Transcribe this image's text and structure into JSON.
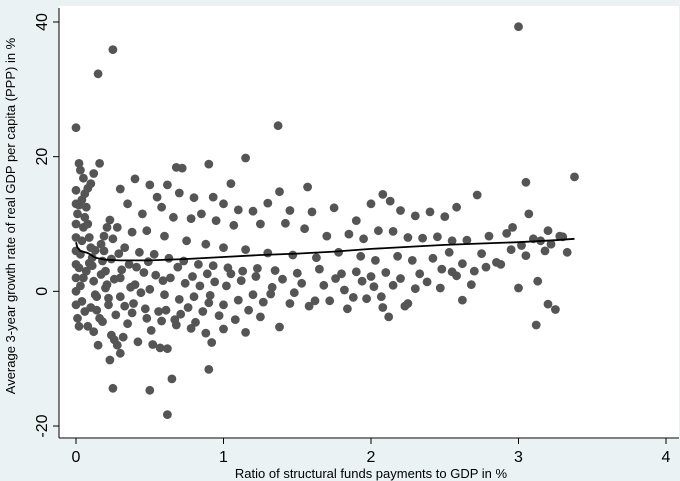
{
  "chart_data": {
    "type": "scatter",
    "xlabel": "Ratio of structural funds payments to GDP in %",
    "ylabel": "Average 3-year growth rate of real GDP per capita (PPP) in %",
    "xlim": [
      0,
      4
    ],
    "ylim": [
      -20,
      40
    ],
    "xticks": [
      "0",
      "1",
      "2",
      "3",
      "4"
    ],
    "yticks": [
      "-20",
      "0",
      "20",
      "40"
    ],
    "grid": false,
    "legend": "none",
    "colors": {
      "background": "#eaf2f3",
      "plot_bg": "#ffffff",
      "marker": "#555555",
      "line": "#000000"
    },
    "series": [
      {
        "kind": "points",
        "points": [
          [
            0.0,
            24.3
          ],
          [
            0.15,
            32.3
          ],
          [
            0.25,
            35.9
          ],
          [
            3.0,
            39.3
          ],
          [
            1.37,
            24.6
          ],
          [
            1.15,
            19.8
          ],
          [
            0.02,
            19.0
          ],
          [
            0.16,
            19.0
          ],
          [
            0.68,
            18.4
          ],
          [
            0.72,
            18.3
          ],
          [
            3.38,
            17.0
          ],
          [
            0.9,
            18.9
          ],
          [
            3.05,
            16.2
          ],
          [
            1.57,
            15.5
          ],
          [
            1.05,
            16.0
          ],
          [
            1.38,
            14.8
          ],
          [
            0.4,
            16.7
          ],
          [
            0.5,
            15.8
          ],
          [
            0.3,
            15.2
          ],
          [
            0.55,
            14.0
          ],
          [
            0.62,
            15.8
          ],
          [
            0.7,
            14.6
          ],
          [
            0.8,
            13.9
          ],
          [
            0.93,
            14.0
          ],
          [
            1.0,
            13.0
          ],
          [
            1.1,
            12.1
          ],
          [
            1.2,
            11.9
          ],
          [
            1.3,
            13.1
          ],
          [
            1.45,
            12.0
          ],
          [
            1.6,
            11.8
          ],
          [
            1.75,
            12.4
          ],
          [
            1.9,
            10.5
          ],
          [
            2.0,
            13.0
          ],
          [
            2.08,
            14.4
          ],
          [
            2.13,
            13.4
          ],
          [
            2.2,
            12.0
          ],
          [
            2.3,
            11.2
          ],
          [
            2.4,
            11.8
          ],
          [
            2.5,
            11.1
          ],
          [
            2.58,
            12.5
          ],
          [
            2.72,
            14.3
          ],
          [
            2.96,
            9.5
          ],
          [
            3.07,
            11.5
          ],
          [
            3.2,
            9.0
          ],
          [
            0.35,
            13.0
          ],
          [
            0.45,
            11.5
          ],
          [
            0.58,
            12.5
          ],
          [
            0.66,
            11.0
          ],
          [
            0.78,
            10.8
          ],
          [
            0.85,
            11.5
          ],
          [
            0.95,
            10.5
          ],
          [
            1.07,
            9.8
          ],
          [
            1.25,
            10.0
          ],
          [
            1.42,
            10.1
          ],
          [
            1.55,
            9.3
          ],
          [
            1.7,
            8.2
          ],
          [
            1.85,
            8.5
          ],
          [
            1.95,
            7.8
          ],
          [
            2.05,
            9.0
          ],
          [
            2.15,
            8.9
          ],
          [
            2.25,
            8.0
          ],
          [
            2.35,
            7.9
          ],
          [
            2.45,
            8.1
          ],
          [
            2.55,
            7.5
          ],
          [
            2.65,
            7.6
          ],
          [
            2.8,
            8.2
          ],
          [
            2.92,
            8.6
          ],
          [
            3.1,
            7.8
          ],
          [
            3.22,
            7.0
          ],
          [
            3.3,
            8.1
          ],
          [
            0.28,
            9.5
          ],
          [
            0.38,
            8.8
          ],
          [
            0.48,
            9.0
          ],
          [
            0.6,
            8.2
          ],
          [
            0.75,
            7.5
          ],
          [
            0.88,
            7.0
          ],
          [
            1.0,
            6.5
          ],
          [
            1.15,
            6.2
          ],
          [
            1.3,
            5.7
          ],
          [
            1.47,
            5.4
          ],
          [
            1.63,
            5.0
          ],
          [
            1.78,
            5.8
          ],
          [
            1.93,
            5.2
          ],
          [
            2.03,
            4.6
          ],
          [
            2.18,
            5.2
          ],
          [
            2.28,
            4.6
          ],
          [
            2.42,
            4.9
          ],
          [
            2.53,
            5.8
          ],
          [
            2.62,
            4.1
          ],
          [
            2.75,
            5.6
          ],
          [
            2.88,
            4.0
          ],
          [
            3.05,
            5.3
          ],
          [
            3.18,
            6.0
          ],
          [
            3.33,
            5.8
          ],
          [
            0.33,
            6.5
          ],
          [
            0.43,
            5.8
          ],
          [
            0.53,
            5.5
          ],
          [
            0.63,
            4.9
          ],
          [
            0.73,
            4.5
          ],
          [
            0.83,
            4.0
          ],
          [
            0.93,
            3.8
          ],
          [
            1.03,
            3.5
          ],
          [
            1.13,
            3.0
          ],
          [
            1.23,
            3.4
          ],
          [
            1.35,
            3.1
          ],
          [
            1.5,
            2.7
          ],
          [
            1.65,
            3.3
          ],
          [
            1.8,
            2.6
          ],
          [
            1.9,
            2.9
          ],
          [
            2.0,
            2.2
          ],
          [
            2.1,
            2.8
          ],
          [
            2.2,
            1.9
          ],
          [
            2.33,
            2.6
          ],
          [
            2.48,
            3.3
          ],
          [
            2.58,
            2.3
          ],
          [
            2.7,
            3.0
          ],
          [
            2.85,
            4.3
          ],
          [
            3.0,
            0.5
          ],
          [
            3.13,
            1.5
          ],
          [
            0.3,
            2.0
          ],
          [
            0.4,
            1.0
          ],
          [
            0.5,
            0.3
          ],
          [
            0.6,
            -0.5
          ],
          [
            0.7,
            -1.2
          ],
          [
            0.8,
            -0.8
          ],
          [
            0.9,
            -1.7
          ],
          [
            1.0,
            -2.0
          ],
          [
            1.1,
            -1.3
          ],
          [
            1.2,
            -0.5
          ],
          [
            1.32,
            -0.4
          ],
          [
            1.45,
            -1.8
          ],
          [
            1.58,
            -2.2
          ],
          [
            1.72,
            -1.4
          ],
          [
            1.84,
            -2.6
          ],
          [
            1.97,
            -1.1
          ],
          [
            2.08,
            -2.4
          ],
          [
            2.12,
            -3.8
          ],
          [
            2.25,
            -1.8
          ],
          [
            2.62,
            -1.3
          ],
          [
            3.2,
            -1.9
          ],
          [
            3.25,
            -2.7
          ],
          [
            0.38,
            -3.2
          ],
          [
            0.48,
            -4.0
          ],
          [
            0.58,
            -4.4
          ],
          [
            0.68,
            -5.0
          ],
          [
            0.78,
            -5.5
          ],
          [
            0.88,
            -6.2
          ],
          [
            1.0,
            -5.6
          ],
          [
            1.15,
            -6.1
          ],
          [
            1.25,
            -3.8
          ],
          [
            1.38,
            -5.3
          ],
          [
            3.12,
            -5.0
          ],
          [
            0.32,
            -6.8
          ],
          [
            0.42,
            -7.5
          ],
          [
            0.52,
            -7.9
          ],
          [
            0.62,
            -8.5
          ],
          [
            0.92,
            -7.6
          ],
          [
            0.3,
            -9.2
          ],
          [
            0.23,
            -10.2
          ],
          [
            0.57,
            -8.4
          ],
          [
            0.9,
            -11.6
          ],
          [
            0.25,
            -14.4
          ],
          [
            0.5,
            -14.7
          ],
          [
            0.65,
            -13.0
          ],
          [
            0.62,
            -18.3
          ],
          [
            0.22,
            -2.0
          ],
          [
            0.18,
            -4.5
          ],
          [
            0.12,
            -6.0
          ],
          [
            0.24,
            -6.5
          ],
          [
            0.26,
            -7.2
          ],
          [
            0.28,
            -8.0
          ],
          [
            0.15,
            -8.0
          ],
          [
            0.08,
            -5.2
          ],
          [
            0.06,
            -3.0
          ],
          [
            0.04,
            -1.5
          ],
          [
            0.1,
            -2.4
          ],
          [
            0.14,
            -0.8
          ],
          [
            0.2,
            0.5
          ],
          [
            0.03,
            0.8
          ],
          [
            0.05,
            2.0
          ],
          [
            0.07,
            3.0
          ],
          [
            0.09,
            4.2
          ],
          [
            0.11,
            5.0
          ],
          [
            0.13,
            6.1
          ],
          [
            0.17,
            7.0
          ],
          [
            0.19,
            8.2
          ],
          [
            0.21,
            9.5
          ],
          [
            0.23,
            10.6
          ],
          [
            0.01,
            11.5
          ],
          [
            0.02,
            12.8
          ],
          [
            0.04,
            13.6
          ],
          [
            0.06,
            14.5
          ],
          [
            0.08,
            15.3
          ],
          [
            0.1,
            16.0
          ],
          [
            0.12,
            17.5
          ],
          [
            0.03,
            18.0
          ],
          [
            0.05,
            16.8
          ],
          [
            0.0,
            15.0
          ],
          [
            0.0,
            13.0
          ],
          [
            0.0,
            10.0
          ],
          [
            0.0,
            8.0
          ],
          [
            0.0,
            6.0
          ],
          [
            0.0,
            4.0
          ],
          [
            0.0,
            2.0
          ],
          [
            0.0,
            0.0
          ],
          [
            0.0,
            -2.0
          ],
          [
            0.01,
            -4.0
          ],
          [
            0.02,
            -5.2
          ],
          [
            0.02,
            3.5
          ],
          [
            0.03,
            5.5
          ],
          [
            0.04,
            7.5
          ],
          [
            0.05,
            9.5
          ],
          [
            0.06,
            11.0
          ],
          [
            0.07,
            12.5
          ],
          [
            0.08,
            10.0
          ],
          [
            0.09,
            8.0
          ],
          [
            0.1,
            6.5
          ],
          [
            0.11,
            3.8
          ],
          [
            0.12,
            1.5
          ],
          [
            0.13,
            -0.5
          ],
          [
            0.14,
            -2.8
          ],
          [
            0.16,
            -4.0
          ],
          [
            0.17,
            2.5
          ],
          [
            0.18,
            4.5
          ],
          [
            0.19,
            6.0
          ],
          [
            0.2,
            3.0
          ],
          [
            0.21,
            1.0
          ],
          [
            0.22,
            -1.0
          ],
          [
            0.24,
            4.8
          ],
          [
            0.25,
            7.8
          ],
          [
            0.26,
            1.8
          ],
          [
            0.27,
            -3.5
          ],
          [
            0.29,
            5.6
          ],
          [
            0.3,
            -0.8
          ],
          [
            0.31,
            3.2
          ],
          [
            0.33,
            -2.2
          ],
          [
            0.35,
            -4.8
          ],
          [
            0.36,
            4.0
          ],
          [
            0.37,
            0.6
          ],
          [
            0.39,
            -1.8
          ],
          [
            0.41,
            3.6
          ],
          [
            0.44,
            -0.2
          ],
          [
            0.46,
            2.8
          ],
          [
            0.47,
            -2.6
          ],
          [
            0.49,
            4.4
          ],
          [
            0.51,
            -5.8
          ],
          [
            0.54,
            2.4
          ],
          [
            0.56,
            -3.0
          ],
          [
            0.59,
            1.6
          ],
          [
            0.61,
            -2.8
          ],
          [
            0.64,
            2.0
          ],
          [
            0.67,
            -4.2
          ],
          [
            0.69,
            3.6
          ],
          [
            0.71,
            -3.4
          ],
          [
            0.74,
            1.2
          ],
          [
            0.76,
            -2.4
          ],
          [
            0.79,
            2.2
          ],
          [
            0.81,
            -4.6
          ],
          [
            0.84,
            0.8
          ],
          [
            0.86,
            -3.0
          ],
          [
            0.89,
            2.6
          ],
          [
            0.91,
            -0.6
          ],
          [
            0.94,
            1.4
          ],
          [
            0.97,
            -3.6
          ],
          [
            1.02,
            0.8
          ],
          [
            1.05,
            2.6
          ],
          [
            1.08,
            -4.2
          ],
          [
            1.12,
            1.6
          ],
          [
            1.17,
            -2.8
          ],
          [
            1.22,
            2.2
          ],
          [
            1.27,
            -1.6
          ],
          [
            1.33,
            0.6
          ],
          [
            1.4,
            1.8
          ],
          [
            1.48,
            -0.2
          ],
          [
            1.53,
            1.2
          ],
          [
            1.62,
            -1.4
          ],
          [
            1.68,
            0.9
          ],
          [
            1.76,
            1.9
          ],
          [
            1.82,
            0.2
          ],
          [
            1.88,
            -0.9
          ],
          [
            1.94,
            1.5
          ],
          [
            2.02,
            0.7
          ],
          [
            2.07,
            -0.8
          ],
          [
            2.15,
            0.9
          ],
          [
            2.23,
            -2.2
          ],
          [
            2.3,
            0.4
          ],
          [
            2.38,
            1.4
          ],
          [
            2.47,
            0.5
          ],
          [
            2.55,
            2.9
          ],
          [
            2.68,
            1.0
          ],
          [
            2.78,
            3.6
          ],
          [
            2.95,
            6.2
          ],
          [
            3.02,
            6.8
          ],
          [
            3.15,
            7.5
          ],
          [
            3.28,
            8.2
          ]
        ]
      },
      {
        "kind": "fit",
        "points": [
          [
            0.0,
            7.3
          ],
          [
            0.01,
            6.5
          ],
          [
            0.03,
            6.0
          ],
          [
            0.08,
            5.7
          ],
          [
            0.13,
            5.0
          ],
          [
            0.2,
            4.7
          ],
          [
            0.3,
            4.6
          ],
          [
            0.5,
            4.6
          ],
          [
            0.75,
            4.8
          ],
          [
            1.0,
            5.1
          ],
          [
            1.25,
            5.4
          ],
          [
            1.5,
            5.6
          ],
          [
            1.75,
            5.9
          ],
          [
            2.0,
            6.3
          ],
          [
            2.25,
            6.6
          ],
          [
            2.5,
            6.9
          ],
          [
            2.75,
            7.1
          ],
          [
            3.0,
            7.3
          ],
          [
            3.25,
            7.6
          ],
          [
            3.38,
            7.8
          ]
        ]
      }
    ]
  }
}
